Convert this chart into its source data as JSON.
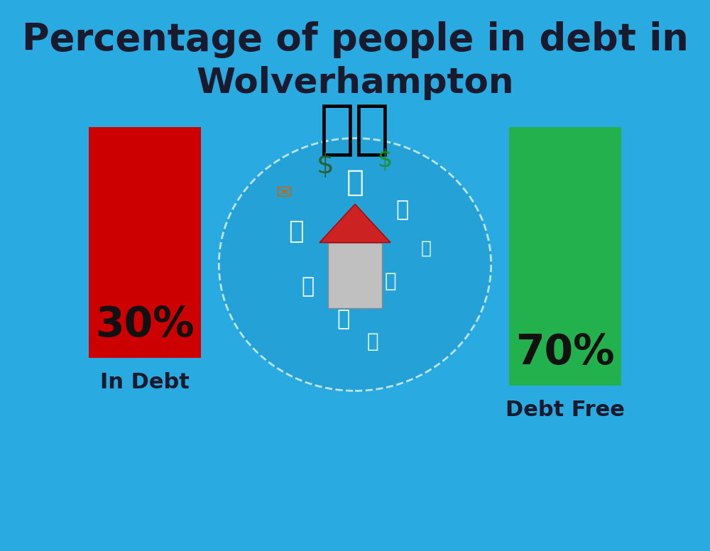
{
  "background_color": "#29ABE2",
  "title_line1": "Percentage of people in debt in",
  "title_line2": "Wolverhampton",
  "title_color": "#1a1a2e",
  "title_fontsize": 38,
  "title2_fontsize": 36,
  "bar_left_value": "30%",
  "bar_right_value": "70%",
  "bar_left_label": "In Debt",
  "bar_right_label": "Debt Free",
  "bar_left_color": "#CC0000",
  "bar_right_color": "#22B14C",
  "bar_label_color": "#1a1a2e",
  "bar_value_color": "#111111",
  "label_fontsize": 22,
  "value_fontsize": 42,
  "flag_emoji": "🇬🇧",
  "flag_fontsize": 60
}
